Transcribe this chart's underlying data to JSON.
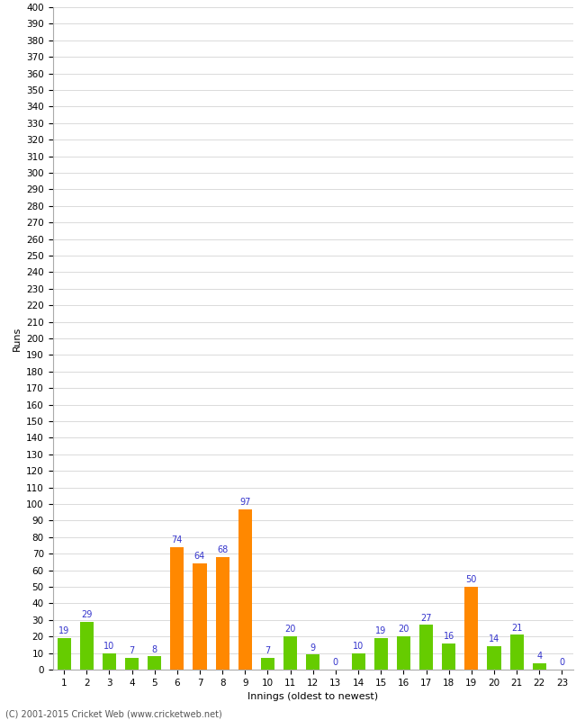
{
  "title": "",
  "xlabel": "Innings (oldest to newest)",
  "ylabel": "Runs",
  "values": [
    19,
    29,
    10,
    7,
    8,
    74,
    64,
    68,
    97,
    7,
    20,
    9,
    0,
    10,
    19,
    20,
    27,
    16,
    50,
    14,
    21,
    4,
    0
  ],
  "innings": [
    1,
    2,
    3,
    4,
    5,
    6,
    7,
    8,
    9,
    10,
    11,
    12,
    13,
    14,
    15,
    16,
    17,
    18,
    19,
    20,
    21,
    22,
    23
  ],
  "orange_indices": [
    5,
    6,
    7,
    8,
    18
  ],
  "green_color": "#66cc00",
  "orange_color": "#ff8800",
  "label_color": "#3333cc",
  "background_color": "#ffffff",
  "grid_color": "#cccccc",
  "ylim": [
    0,
    400
  ],
  "ytick_step": 10,
  "label_fontsize": 8,
  "tick_fontsize": 7.5,
  "value_label_fontsize": 7,
  "footer": "(C) 2001-2015 Cricket Web (www.cricketweb.net)"
}
